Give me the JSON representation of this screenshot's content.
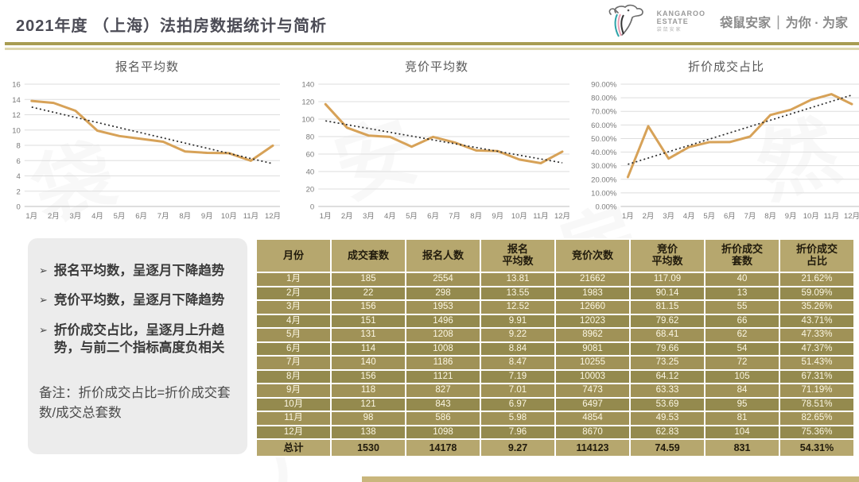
{
  "header": {
    "title": "2021年度 （上海）法拍房数据统计与简析",
    "logo": {
      "brand_line1": "KANGAROO",
      "brand_line2": "ESTATE",
      "brand_sub": "袋鼠安家",
      "tagline_left": "袋鼠安家",
      "tagline_divider": "|",
      "tagline_right": "为你 · 为家"
    }
  },
  "watermark_chars": "袋鼠安家房产自然字",
  "notes": {
    "bullet_glyph": "➢",
    "bullets": [
      "报名平均数，呈逐月下降趋势",
      "竞价平均数，呈逐月下降趋势",
      "折价成交占比，呈逐月上升趋势，与前二个指标高度负相关"
    ],
    "remark": "备注：折价成交占比=折价成交套数/成交总套数"
  },
  "colors": {
    "line": "#d7a258",
    "trend": "#2b2b2b",
    "grid": "#dedede",
    "axis": "#bdbdbd",
    "table_header_bg": "#b6a76e",
    "row_odd": "#a09257",
    "row_even": "#948a4e",
    "accent_rule": "#a89c52"
  },
  "chart_data": [
    {
      "type": "line",
      "title": "报名平均数",
      "categories": [
        "1月",
        "2月",
        "3月",
        "4月",
        "5月",
        "6月",
        "7月",
        "8月",
        "9月",
        "10月",
        "11月",
        "12月"
      ],
      "series": [
        {
          "name": "报名平均数",
          "values": [
            13.81,
            13.55,
            12.52,
            9.91,
            9.22,
            8.84,
            8.47,
            7.19,
            7.01,
            6.97,
            5.98,
            7.96
          ]
        }
      ],
      "trend": [
        13.0,
        5.6
      ],
      "ylim": [
        0,
        16
      ],
      "ystep": 2,
      "yformat": "int",
      "xlabel": "",
      "ylabel": "",
      "grid": true,
      "legend": "none"
    },
    {
      "type": "line",
      "title": "竞价平均数",
      "categories": [
        "1月",
        "2月",
        "3月",
        "4月",
        "5月",
        "6月",
        "7月",
        "8月",
        "9月",
        "10月",
        "11月",
        "12月"
      ],
      "series": [
        {
          "name": "竞价平均数",
          "values": [
            117.09,
            90.14,
            81.15,
            79.62,
            68.41,
            79.66,
            73.25,
            64.12,
            63.33,
            53.69,
            49.53,
            62.83
          ]
        }
      ],
      "trend": [
        98,
        50
      ],
      "ylim": [
        0,
        140
      ],
      "ystep": 20,
      "yformat": "int",
      "xlabel": "",
      "ylabel": "",
      "grid": true,
      "legend": "none"
    },
    {
      "type": "line",
      "title": "折价成交占比",
      "categories": [
        "1月",
        "2月",
        "3月",
        "4月",
        "5月",
        "6月",
        "7月",
        "8月",
        "9月",
        "10月",
        "11月",
        "12月"
      ],
      "series": [
        {
          "name": "折价成交占比",
          "values": [
            21.62,
            59.09,
            35.26,
            43.71,
            47.33,
            47.37,
            51.43,
            67.31,
            71.19,
            78.51,
            82.65,
            75.36
          ]
        }
      ],
      "trend": [
        31,
        82
      ],
      "ylim": [
        0,
        90
      ],
      "ystep": 10,
      "yformat": "percent2",
      "xlabel": "",
      "ylabel": "",
      "grid": true,
      "legend": "none"
    }
  ],
  "table": {
    "headers": [
      "月份",
      "成交套数",
      "报名人数",
      "报名\n平均数",
      "竞价次数",
      "竞价\n平均数",
      "折价成交\n套数",
      "折价成交\n占比"
    ],
    "rows": [
      [
        "1月",
        "185",
        "2554",
        "13.81",
        "21662",
        "117.09",
        "40",
        "21.62%"
      ],
      [
        "2月",
        "22",
        "298",
        "13.55",
        "1983",
        "90.14",
        "13",
        "59.09%"
      ],
      [
        "3月",
        "156",
        "1953",
        "12.52",
        "12660",
        "81.15",
        "55",
        "35.26%"
      ],
      [
        "4月",
        "151",
        "1496",
        "9.91",
        "12023",
        "79.62",
        "66",
        "43.71%"
      ],
      [
        "5月",
        "131",
        "1208",
        "9.22",
        "8962",
        "68.41",
        "62",
        "47.33%"
      ],
      [
        "6月",
        "114",
        "1008",
        "8.84",
        "9081",
        "79.66",
        "54",
        "47.37%"
      ],
      [
        "7月",
        "140",
        "1186",
        "8.47",
        "10255",
        "73.25",
        "72",
        "51.43%"
      ],
      [
        "8月",
        "156",
        "1121",
        "7.19",
        "10003",
        "64.12",
        "105",
        "67.31%"
      ],
      [
        "9月",
        "118",
        "827",
        "7.01",
        "7473",
        "63.33",
        "84",
        "71.19%"
      ],
      [
        "10月",
        "121",
        "843",
        "6.97",
        "6497",
        "53.69",
        "95",
        "78.51%"
      ],
      [
        "11月",
        "98",
        "586",
        "5.98",
        "4854",
        "49.53",
        "81",
        "82.65%"
      ],
      [
        "12月",
        "138",
        "1098",
        "7.96",
        "8670",
        "62.83",
        "104",
        "75.36%"
      ]
    ],
    "total": [
      "总计",
      "1530",
      "14178",
      "9.27",
      "114123",
      "74.59",
      "831",
      "54.31%"
    ]
  }
}
